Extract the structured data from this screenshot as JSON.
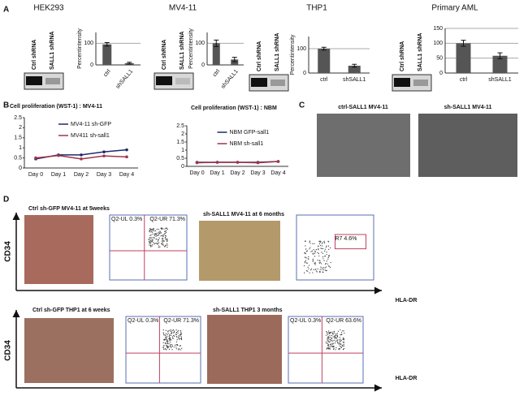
{
  "chart_data": [
    {
      "type": "bar",
      "title": "HEK293",
      "y_label": "Percentintensity",
      "categories": [
        "ctrl",
        "shSALL1"
      ],
      "values": [
        95,
        8
      ],
      "errors": [
        8,
        4
      ],
      "color": "#555555",
      "ylim": [
        0,
        150
      ],
      "yticks": [
        0,
        100
      ],
      "grid": true
    },
    {
      "type": "bar",
      "title": "MV4-11",
      "y_label": "Percentintensity",
      "categories": [
        "ctrl",
        "shSALL1"
      ],
      "values": [
        100,
        25
      ],
      "errors": [
        15,
        10
      ],
      "color": "#555555",
      "ylim": [
        0,
        150
      ],
      "yticks": [
        0,
        100
      ],
      "grid": true
    },
    {
      "type": "bar",
      "title": "THP1",
      "y_label": "Percentintensity",
      "categories": [
        "ctrl",
        "shSALL1"
      ],
      "values": [
        100,
        30
      ],
      "errors": [
        6,
        6
      ],
      "color": "#555555",
      "ylim": [
        0,
        150
      ],
      "yticks": [
        0,
        100
      ],
      "grid": true
    },
    {
      "type": "bar",
      "title": "Primary AML",
      "categories": [
        "ctrl",
        "shSALL1"
      ],
      "values": [
        100,
        58
      ],
      "errors": [
        10,
        10
      ],
      "color": "#555555",
      "ylim": [
        0,
        150
      ],
      "yticks": [
        0,
        50,
        100,
        150
      ],
      "grid": true
    },
    {
      "type": "line",
      "title": "Cell proliferation (WST-1) : MV4-11",
      "categories": [
        "Day 0",
        "Day 1",
        "Day 2",
        "Day 3",
        "Day 4"
      ],
      "ylim": [
        0,
        2.5
      ],
      "yticks": [
        0,
        0.5,
        1,
        1.5,
        2,
        2.5
      ],
      "series": [
        {
          "name": "MV4-11 sh-GFP",
          "color": "#1f2a6b",
          "values": [
            0.45,
            0.65,
            0.65,
            0.8,
            0.9
          ]
        },
        {
          "name": "MV411 sh-sall1",
          "color": "#a0344a",
          "values": [
            0.5,
            0.62,
            0.45,
            0.6,
            0.55
          ]
        }
      ]
    },
    {
      "type": "line",
      "title": "Cell proliferation (WST-1) : NBM",
      "categories": [
        "Day 0",
        "Day 1",
        "Day 2",
        "Day 3",
        "Day 4"
      ],
      "ylim": [
        0,
        2.5
      ],
      "yticks": [
        0,
        0.5,
        1,
        1.5,
        2,
        2.5
      ],
      "series": [
        {
          "name": "NBM GFP-sall1",
          "color": "#1f2a6b",
          "values": [
            0.25,
            0.25,
            0.25,
            0.25,
            0.3
          ]
        },
        {
          "name": "NBM sh-sall1",
          "color": "#a0344a",
          "values": [
            0.22,
            0.25,
            0.25,
            0.22,
            0.3
          ]
        }
      ]
    }
  ],
  "panels": {
    "labels": [
      "A",
      "B",
      "C",
      "D"
    ],
    "blot": {
      "ctrl": "Ctrl shRNA",
      "sh": "SALL1 shRNA"
    },
    "panel_c": [
      "ctrl-SALL1 MV4-11",
      "sh-SALL1 MV4-11"
    ],
    "panel_d": {
      "titles": [
        "Ctrl sh-GFP MV4-11 at 5weeks",
        "sh-SALL1 MV4-11 at 6 months",
        "Ctrl sh-GFP THP1 at 6 weeks",
        "sh-SALL1 THP1 3 months"
      ],
      "y_axis": "CD34",
      "x_axis": "HLA-DR",
      "flow": [
        [
          "Q2-UL 0.3%",
          "Q2-UR 71.3%"
        ],
        [
          "R7 4.6%"
        ],
        [
          "Q2-UL 0.3%",
          "Q2-UR 71.3%"
        ],
        [
          "Q2-UL 0.3%",
          "Q2-UR 63.6%"
        ]
      ]
    }
  }
}
